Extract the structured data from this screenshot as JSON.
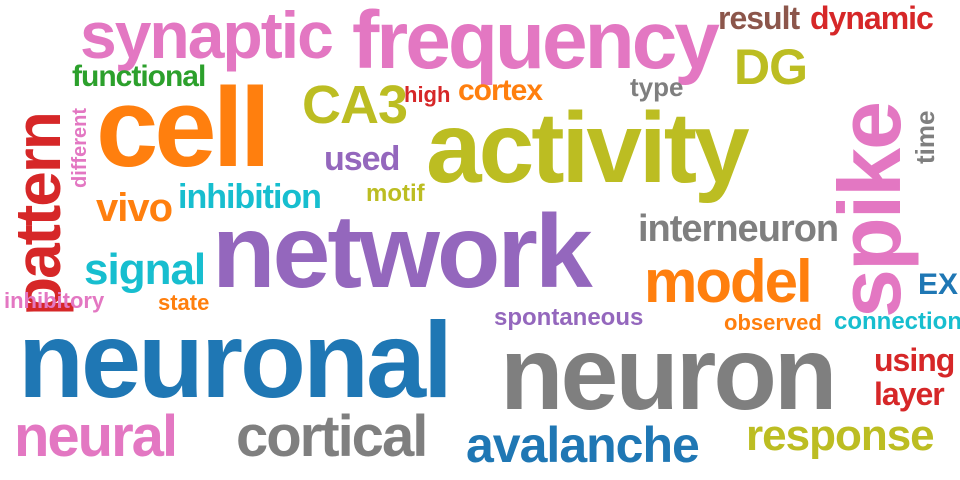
{
  "words": [
    {
      "text": "neuronal",
      "color": "#1f77b4"
    },
    {
      "text": "neuron",
      "color": "#7f7f7f"
    },
    {
      "text": "network",
      "color": "#9467bd"
    },
    {
      "text": "activity",
      "color": "#bcbd22"
    },
    {
      "text": "spike",
      "color": "#e377c2"
    },
    {
      "text": "cell",
      "color": "#ff7f0e"
    },
    {
      "text": "frequency",
      "color": "#e377c2"
    },
    {
      "text": "pattern",
      "color": "#d62728"
    },
    {
      "text": "synaptic",
      "color": "#e377c2"
    },
    {
      "text": "model",
      "color": "#ff7f0e"
    },
    {
      "text": "avalanche",
      "color": "#1f77b4"
    },
    {
      "text": "cortical",
      "color": "#7f7f7f"
    },
    {
      "text": "neural",
      "color": "#e377c2"
    },
    {
      "text": "CA3",
      "color": "#bcbd22"
    },
    {
      "text": "response",
      "color": "#bcbd22"
    },
    {
      "text": "signal",
      "color": "#17becf"
    },
    {
      "text": "interneuron",
      "color": "#7f7f7f"
    },
    {
      "text": "inhibition",
      "color": "#17becf"
    },
    {
      "text": "vivo",
      "color": "#ff7f0e"
    },
    {
      "text": "dynamic",
      "color": "#d62728"
    },
    {
      "text": "result",
      "color": "#8c564b"
    },
    {
      "text": "DG",
      "color": "#bcbd22"
    },
    {
      "text": "cortex",
      "color": "#ff7f0e"
    },
    {
      "text": "used",
      "color": "#9467bd"
    },
    {
      "text": "functional",
      "color": "#2ca02c"
    },
    {
      "text": "using",
      "color": "#d62728"
    },
    {
      "text": "layer",
      "color": "#d62728"
    },
    {
      "text": "connection",
      "color": "#17becf"
    },
    {
      "text": "spontaneous",
      "color": "#9467bd"
    },
    {
      "text": "inhibitory",
      "color": "#e377c2"
    },
    {
      "text": "observed",
      "color": "#ff7f0e"
    },
    {
      "text": "time",
      "color": "#7f7f7f"
    },
    {
      "text": "type",
      "color": "#7f7f7f"
    },
    {
      "text": "high",
      "color": "#d62728"
    },
    {
      "text": "motif",
      "color": "#bcbd22"
    },
    {
      "text": "different",
      "color": "#e377c2"
    },
    {
      "text": "state",
      "color": "#ff7f0e"
    },
    {
      "text": "EX",
      "color": "#1f77b4"
    }
  ]
}
